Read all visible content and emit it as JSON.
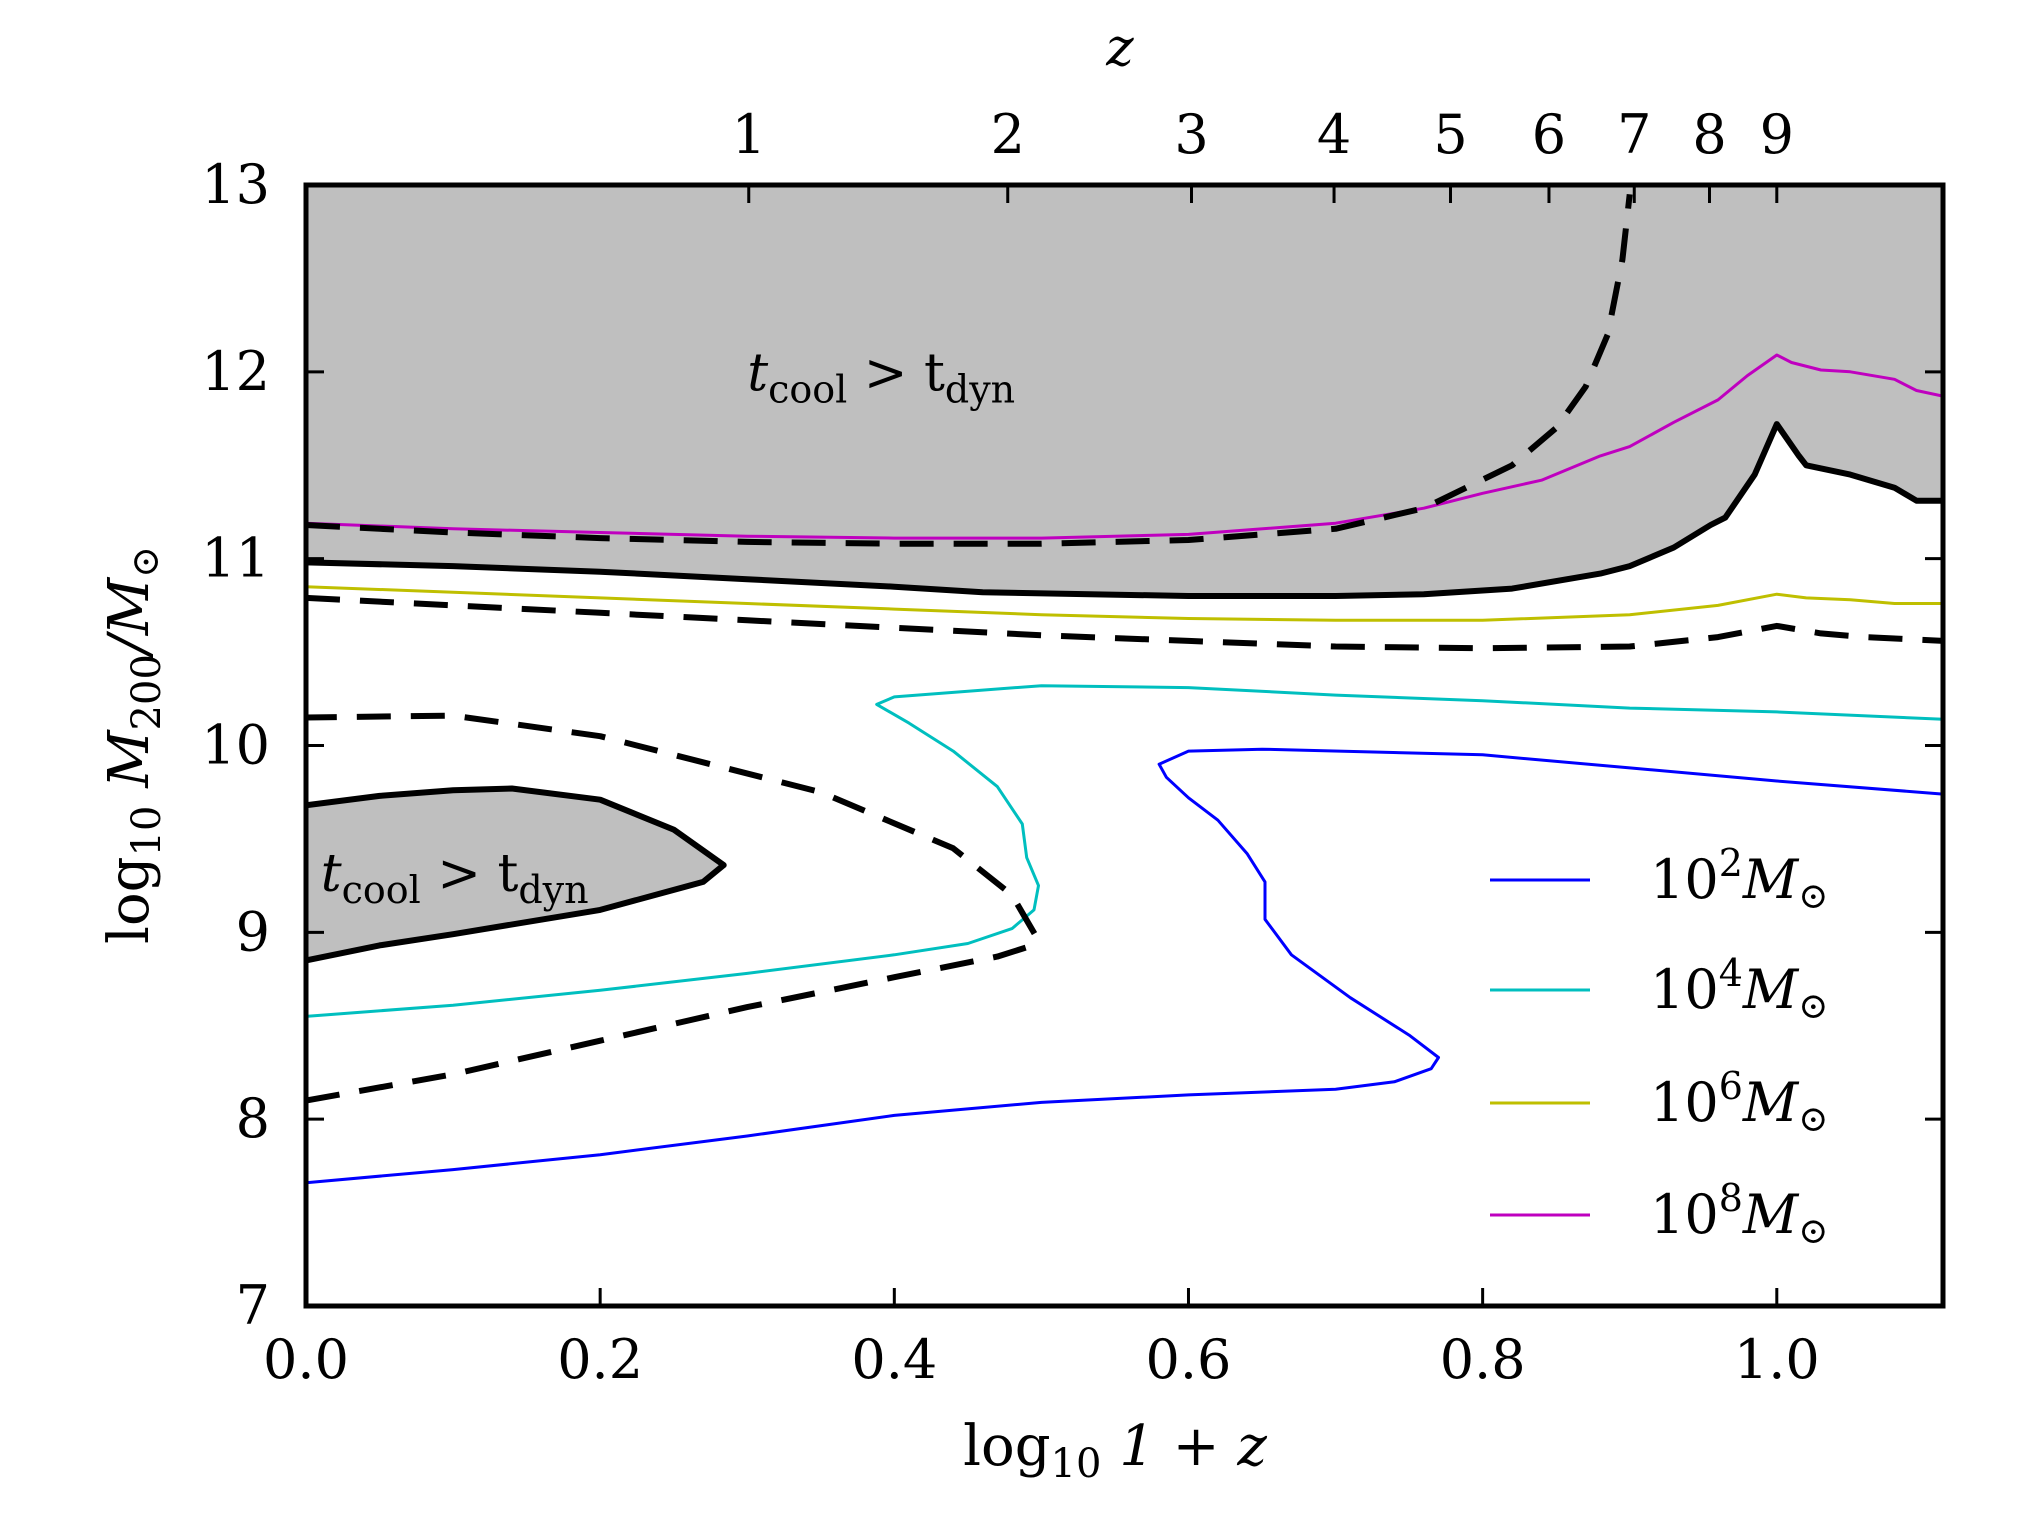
{
  "chart_data": {
    "type": "line",
    "title": "",
    "xlabel_main": "log",
    "xlabel_sub": "10",
    "xlabel_rest": " 1 + z",
    "ylabel_main": "log",
    "ylabel_sub": "10",
    "ylabel_rest": "  M",
    "ylabel_msub": "200",
    "ylabel_tail": "/M",
    "ylabel_sun": "⊙",
    "top_axis_label": "z",
    "xlim": [
      0.0,
      1.113
    ],
    "ylim": [
      7,
      13
    ],
    "x_ticks": [
      0.0,
      0.2,
      0.4,
      0.6,
      0.8,
      1.0
    ],
    "x_tick_labels": [
      "0.0",
      "0.2",
      "0.4",
      "0.6",
      "0.8",
      "1.0"
    ],
    "y_ticks": [
      7,
      8,
      9,
      10,
      11,
      12,
      13
    ],
    "y_tick_labels": [
      "7",
      "8",
      "9",
      "10",
      "11",
      "12",
      "13"
    ],
    "z_ticks": [
      1,
      2,
      3,
      4,
      5,
      6,
      7,
      8,
      9
    ],
    "z_tick_labels": [
      "1",
      "2",
      "3",
      "4",
      "5",
      "6",
      "7",
      "8",
      "9"
    ],
    "annotations": [
      {
        "text": "t",
        "sub_a": "cool",
        "mid": " > t",
        "sub_b": "dyn",
        "x": 0.3,
        "y": 11.9
      },
      {
        "text": "t",
        "sub_a": "cool",
        "mid": " > t",
        "sub_b": "dyn",
        "x": 0.01,
        "y": 9.22
      }
    ],
    "legend_position": "lower-right",
    "legend": [
      {
        "base": "10",
        "exp": "2",
        "unit": "M",
        "sun": "⊙",
        "color": "#0000ff"
      },
      {
        "base": "10",
        "exp": "4",
        "unit": "M",
        "sun": "⊙",
        "color": "#00bfbf"
      },
      {
        "base": "10",
        "exp": "6",
        "unit": "M",
        "sun": "⊙",
        "color": "#bfbf00"
      },
      {
        "base": "10",
        "exp": "8",
        "unit": "M",
        "sun": "⊙",
        "color": "#bf00bf"
      }
    ],
    "shaded_color": "#bfbfbf",
    "shaded_regions": [
      {
        "name": "upper-region",
        "points": [
          [
            0.0,
            13
          ],
          [
            0.0,
            10.98
          ],
          [
            0.1,
            10.96
          ],
          [
            0.2,
            10.93
          ],
          [
            0.3,
            10.89
          ],
          [
            0.4,
            10.85
          ],
          [
            0.46,
            10.82
          ],
          [
            0.6,
            10.8
          ],
          [
            0.7,
            10.8
          ],
          [
            0.76,
            10.81
          ],
          [
            0.82,
            10.84
          ],
          [
            0.88,
            10.92
          ],
          [
            0.9,
            10.96
          ],
          [
            0.93,
            11.06
          ],
          [
            0.955,
            11.18
          ],
          [
            0.965,
            11.22
          ],
          [
            0.985,
            11.45
          ],
          [
            1.0,
            11.72
          ],
          [
            1.015,
            11.55
          ],
          [
            1.02,
            11.5
          ],
          [
            1.05,
            11.45
          ],
          [
            1.08,
            11.38
          ],
          [
            1.095,
            11.31
          ],
          [
            1.113,
            11.31
          ],
          [
            1.113,
            13
          ]
        ]
      },
      {
        "name": "lower-region",
        "points": [
          [
            0.0,
            9.68
          ],
          [
            0.05,
            9.73
          ],
          [
            0.1,
            9.76
          ],
          [
            0.14,
            9.77
          ],
          [
            0.2,
            9.71
          ],
          [
            0.25,
            9.55
          ],
          [
            0.284,
            9.36
          ],
          [
            0.27,
            9.27
          ],
          [
            0.2,
            9.12
          ],
          [
            0.1,
            8.99
          ],
          [
            0.05,
            8.93
          ],
          [
            0.0,
            8.85
          ]
        ]
      }
    ],
    "series": [
      {
        "name": "10^2 Msun",
        "color": "#0000ff",
        "style": "thin",
        "points": [
          [
            0.0,
            7.66
          ],
          [
            0.1,
            7.73
          ],
          [
            0.2,
            7.81
          ],
          [
            0.3,
            7.91
          ],
          [
            0.4,
            8.02
          ],
          [
            0.5,
            8.09
          ],
          [
            0.6,
            8.13
          ],
          [
            0.7,
            8.16
          ],
          [
            0.74,
            8.2
          ],
          [
            0.765,
            8.27
          ],
          [
            0.77,
            8.33
          ],
          [
            0.75,
            8.45
          ],
          [
            0.71,
            8.65
          ],
          [
            0.67,
            8.88
          ],
          [
            0.652,
            9.07
          ],
          [
            0.652,
            9.27
          ],
          [
            0.64,
            9.42
          ],
          [
            0.62,
            9.6
          ],
          [
            0.6,
            9.72
          ],
          [
            0.585,
            9.83
          ],
          [
            0.58,
            9.9
          ],
          [
            0.6,
            9.97
          ],
          [
            0.65,
            9.98
          ],
          [
            0.8,
            9.95
          ],
          [
            0.9,
            9.88
          ],
          [
            1.0,
            9.81
          ],
          [
            1.113,
            9.74
          ]
        ]
      },
      {
        "name": "10^4 Msun",
        "color": "#00bfbf",
        "style": "thin",
        "points": [
          [
            0.0,
            8.55
          ],
          [
            0.1,
            8.61
          ],
          [
            0.2,
            8.69
          ],
          [
            0.3,
            8.78
          ],
          [
            0.4,
            8.88
          ],
          [
            0.45,
            8.94
          ],
          [
            0.48,
            9.02
          ],
          [
            0.495,
            9.12
          ],
          [
            0.498,
            9.25
          ],
          [
            0.49,
            9.4
          ],
          [
            0.487,
            9.58
          ],
          [
            0.47,
            9.78
          ],
          [
            0.44,
            9.97
          ],
          [
            0.41,
            10.12
          ],
          [
            0.388,
            10.22
          ],
          [
            0.4,
            10.26
          ],
          [
            0.5,
            10.32
          ],
          [
            0.6,
            10.31
          ],
          [
            0.7,
            10.27
          ],
          [
            0.8,
            10.24
          ],
          [
            0.9,
            10.2
          ],
          [
            1.0,
            10.18
          ],
          [
            1.113,
            10.14
          ]
        ]
      },
      {
        "name": "10^6 Msun",
        "color": "#bfbf00",
        "style": "thin",
        "points": [
          [
            0.0,
            10.85
          ],
          [
            0.1,
            10.82
          ],
          [
            0.2,
            10.79
          ],
          [
            0.3,
            10.76
          ],
          [
            0.4,
            10.73
          ],
          [
            0.5,
            10.7
          ],
          [
            0.6,
            10.68
          ],
          [
            0.7,
            10.67
          ],
          [
            0.8,
            10.67
          ],
          [
            0.9,
            10.7
          ],
          [
            0.96,
            10.75
          ],
          [
            1.0,
            10.81
          ],
          [
            1.02,
            10.79
          ],
          [
            1.05,
            10.78
          ],
          [
            1.08,
            10.76
          ],
          [
            1.113,
            10.76
          ]
        ]
      },
      {
        "name": "10^8 Msun",
        "color": "#bf00bf",
        "style": "thin",
        "points": [
          [
            0.0,
            11.19
          ],
          [
            0.1,
            11.16
          ],
          [
            0.2,
            11.14
          ],
          [
            0.3,
            11.12
          ],
          [
            0.4,
            11.11
          ],
          [
            0.5,
            11.11
          ],
          [
            0.6,
            11.13
          ],
          [
            0.7,
            11.19
          ],
          [
            0.76,
            11.27
          ],
          [
            0.8,
            11.35
          ],
          [
            0.84,
            11.42
          ],
          [
            0.88,
            11.55
          ],
          [
            0.9,
            11.6
          ],
          [
            0.93,
            11.73
          ],
          [
            0.96,
            11.85
          ],
          [
            0.98,
            11.98
          ],
          [
            1.0,
            12.09
          ],
          [
            1.01,
            12.05
          ],
          [
            1.03,
            12.01
          ],
          [
            1.05,
            12.0
          ],
          [
            1.08,
            11.96
          ],
          [
            1.095,
            11.9
          ],
          [
            1.113,
            11.87
          ]
        ]
      },
      {
        "name": "boundary-upper-solid",
        "color": "#000000",
        "style": "solid-thick",
        "points": [
          [
            0.0,
            10.98
          ],
          [
            0.1,
            10.96
          ],
          [
            0.2,
            10.93
          ],
          [
            0.3,
            10.89
          ],
          [
            0.4,
            10.85
          ],
          [
            0.46,
            10.82
          ],
          [
            0.6,
            10.8
          ],
          [
            0.7,
            10.8
          ],
          [
            0.76,
            10.81
          ],
          [
            0.82,
            10.84
          ],
          [
            0.88,
            10.92
          ],
          [
            0.9,
            10.96
          ],
          [
            0.93,
            11.06
          ],
          [
            0.955,
            11.18
          ],
          [
            0.965,
            11.22
          ],
          [
            0.985,
            11.45
          ],
          [
            1.0,
            11.72
          ],
          [
            1.015,
            11.55
          ],
          [
            1.02,
            11.5
          ],
          [
            1.05,
            11.45
          ],
          [
            1.08,
            11.38
          ],
          [
            1.095,
            11.31
          ],
          [
            1.113,
            11.31
          ]
        ]
      },
      {
        "name": "boundary-lower-solid",
        "color": "#000000",
        "style": "solid-thick",
        "points": [
          [
            0.0,
            9.68
          ],
          [
            0.05,
            9.73
          ],
          [
            0.1,
            9.76
          ],
          [
            0.14,
            9.77
          ],
          [
            0.2,
            9.71
          ],
          [
            0.25,
            9.55
          ],
          [
            0.284,
            9.36
          ],
          [
            0.27,
            9.27
          ],
          [
            0.2,
            9.12
          ],
          [
            0.1,
            8.99
          ],
          [
            0.05,
            8.93
          ],
          [
            0.0,
            8.85
          ]
        ]
      },
      {
        "name": "dashed-upper",
        "color": "#000000",
        "style": "dashed",
        "points": [
          [
            0.0,
            11.18
          ],
          [
            0.1,
            11.14
          ],
          [
            0.2,
            11.11
          ],
          [
            0.3,
            11.09
          ],
          [
            0.4,
            11.08
          ],
          [
            0.5,
            11.08
          ],
          [
            0.6,
            11.1
          ],
          [
            0.7,
            11.16
          ],
          [
            0.76,
            11.27
          ],
          [
            0.82,
            11.5
          ],
          [
            0.85,
            11.7
          ],
          [
            0.87,
            11.92
          ],
          [
            0.885,
            12.2
          ],
          [
            0.895,
            12.6
          ],
          [
            0.9,
            12.95
          ]
        ]
      },
      {
        "name": "dashed-middle",
        "color": "#000000",
        "style": "dashed",
        "points": [
          [
            0.0,
            10.79
          ],
          [
            0.1,
            10.75
          ],
          [
            0.2,
            10.71
          ],
          [
            0.3,
            10.67
          ],
          [
            0.4,
            10.63
          ],
          [
            0.5,
            10.59
          ],
          [
            0.6,
            10.56
          ],
          [
            0.7,
            10.53
          ],
          [
            0.8,
            10.52
          ],
          [
            0.9,
            10.53
          ],
          [
            0.96,
            10.58
          ],
          [
            1.0,
            10.64
          ],
          [
            1.03,
            10.6
          ],
          [
            1.06,
            10.58
          ],
          [
            1.113,
            10.56
          ]
        ]
      },
      {
        "name": "dashed-lower",
        "color": "#000000",
        "style": "dashed",
        "points": [
          [
            0.0,
            8.1
          ],
          [
            0.1,
            8.24
          ],
          [
            0.2,
            8.42
          ],
          [
            0.3,
            8.6
          ],
          [
            0.4,
            8.76
          ],
          [
            0.47,
            8.87
          ],
          [
            0.49,
            8.92
          ],
          [
            0.497,
            8.97
          ],
          [
            0.48,
            9.2
          ],
          [
            0.44,
            9.45
          ],
          [
            0.35,
            9.75
          ],
          [
            0.2,
            10.05
          ],
          [
            0.1,
            10.16
          ],
          [
            0.0,
            10.15
          ]
        ]
      }
    ]
  }
}
